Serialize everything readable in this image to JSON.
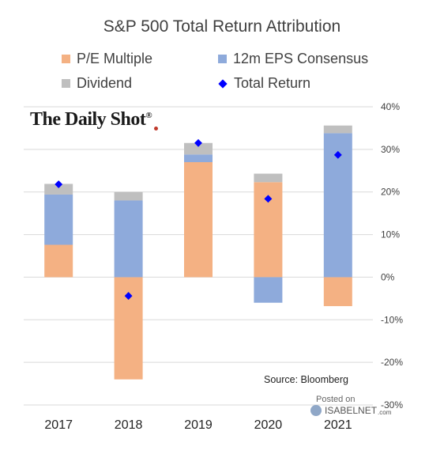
{
  "chart_data": {
    "type": "bar",
    "stacked": true,
    "title": "S&P 500 Total Return Attribution",
    "categories": [
      "2017",
      "2018",
      "2019",
      "2020",
      "2021"
    ],
    "series": [
      {
        "name": "P/E Multiple",
        "color": "#f4b183",
        "values": [
          7.6,
          -24.0,
          27.0,
          22.3,
          -6.8
        ]
      },
      {
        "name": "12m EPS Consensus",
        "color": "#8eaadb",
        "values": [
          11.8,
          18.0,
          1.8,
          -6.0,
          33.8
        ]
      },
      {
        "name": "Dividend",
        "color": "#bfbfbf",
        "values": [
          2.5,
          2.0,
          2.7,
          2.0,
          1.8
        ]
      }
    ],
    "markers": {
      "name": "Total Return",
      "color": "#0000ff",
      "values": [
        21.8,
        -4.4,
        31.5,
        18.4,
        28.7
      ]
    },
    "ylim": [
      -30,
      40
    ],
    "yticks": [
      "40%",
      "30%",
      "20%",
      "10%",
      "0%",
      "-10%",
      "-20%",
      "-30%"
    ],
    "grid": true,
    "legend_position": "top"
  },
  "annotations": {
    "source": "Source: Bloomberg",
    "logo": "The Daily Shot",
    "logo_mark": "®",
    "posted": "Posted on",
    "site": "ISABELNET",
    "site_suffix": ".com"
  }
}
